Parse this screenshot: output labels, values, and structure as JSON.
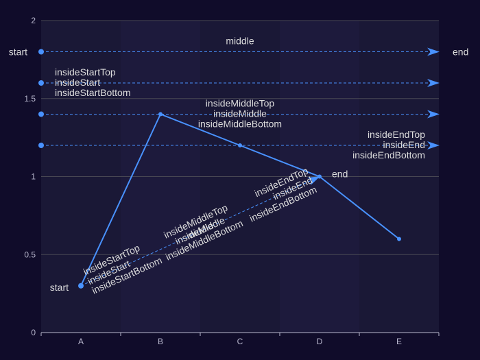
{
  "chart_data": {
    "type": "line",
    "categories": [
      "A",
      "B",
      "C",
      "D",
      "E"
    ],
    "series": [
      {
        "values": [
          0.3,
          1.4,
          1.2,
          1.0,
          0.6
        ]
      }
    ],
    "ylim": [
      0,
      2
    ],
    "yticks": [
      "0",
      "0.5",
      "1",
      "1.5",
      "2"
    ],
    "grid": true,
    "colors": {
      "background": "#100c2a",
      "line": "#4992ff",
      "axis": "#b9b8ce",
      "grid": "#484753",
      "band": "#1a1836",
      "text": "#dcdcdc"
    },
    "mark_lines": [
      {
        "y": 1.8,
        "labels": [
          {
            "position": "start",
            "text": "start"
          },
          {
            "position": "middle",
            "text": "middle"
          },
          {
            "position": "end",
            "text": "end"
          }
        ]
      },
      {
        "y": 1.6,
        "labels": [
          {
            "position": "insideStartTop",
            "text": "insideStartTop"
          },
          {
            "position": "insideStart",
            "text": "insideStart"
          },
          {
            "position": "insideStartBottom",
            "text": "insideStartBottom"
          }
        ]
      },
      {
        "y": 1.4,
        "labels": [
          {
            "position": "insideMiddleTop",
            "text": "insideMiddleTop"
          },
          {
            "position": "insideMiddle",
            "text": "insideMiddle"
          },
          {
            "position": "insideMiddleBottom",
            "text": "insideMiddleBottom"
          }
        ]
      },
      {
        "y": 1.2,
        "labels": [
          {
            "position": "insideEndTop",
            "text": "insideEndTop"
          },
          {
            "position": "insideEnd",
            "text": "insideEnd"
          },
          {
            "position": "insideEndBottom",
            "text": "insideEndBottom"
          }
        ]
      }
    ],
    "diagonal_mark_line": {
      "from": {
        "x": "A",
        "y": 0.3
      },
      "to": {
        "x": "D",
        "y": 1.0
      },
      "labels": [
        {
          "position": "start",
          "text": "start"
        },
        {
          "position": "end",
          "text": "end"
        },
        {
          "position": "insideStartTop",
          "text": "insideStartTop"
        },
        {
          "position": "insideStart",
          "text": "insideStart"
        },
        {
          "position": "insideStartBottom",
          "text": "insideStartBottom"
        },
        {
          "position": "insideMiddleTop",
          "text": "insideMiddleTop"
        },
        {
          "position": "middle",
          "text": "middle"
        },
        {
          "position": "insideMiddle",
          "text": "insideMiddle"
        },
        {
          "position": "insideMiddleBottom",
          "text": "insideMiddleBottom"
        },
        {
          "position": "insideEndTop",
          "text": "insideEndTop"
        },
        {
          "position": "insideEnd",
          "text": "insideEnd"
        },
        {
          "position": "insideEndBottom",
          "text": "insideEndBottom"
        }
      ]
    }
  }
}
